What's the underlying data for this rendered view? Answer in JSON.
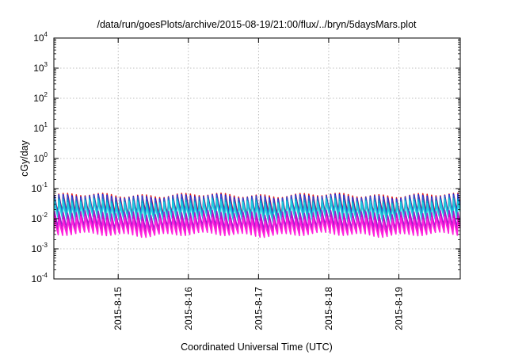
{
  "chart_data": {
    "type": "line",
    "title": "/data/run/goesPlots/archive/2015-08-19/21:00/flux/../bryn/5daysMars.plot",
    "xlabel": "Coordinated Universal Time (UTC)",
    "ylabel": "cGy/day",
    "x_range": [
      "2015-08-14 02:00",
      "2015-08-19 21:00"
    ],
    "x_ticks": [
      "2015-8-15",
      "2015-8-16",
      "2015-8-17",
      "2015-8-18",
      "2015-8-19"
    ],
    "y_scale": "log",
    "ylim": [
      0.0001,
      10000
    ],
    "y_ticks": [
      {
        "base": "10",
        "exp": "-4"
      },
      {
        "base": "10",
        "exp": "-3"
      },
      {
        "base": "10",
        "exp": "-2"
      },
      {
        "base": "10",
        "exp": "-1"
      },
      {
        "base": "10",
        "exp": "0"
      },
      {
        "base": "10",
        "exp": "1"
      },
      {
        "base": "10",
        "exp": "2"
      },
      {
        "base": "10",
        "exp": "3"
      },
      {
        "base": "10",
        "exp": "4"
      }
    ],
    "grid": true,
    "cycle_hours": 1.5,
    "series": [
      {
        "color": "#e0201a",
        "peak": 0.06,
        "trough": 0.015
      },
      {
        "color": "#2222dd",
        "peak": 0.055,
        "trough": 0.013
      },
      {
        "color": "#3355cc",
        "peak": 0.05,
        "trough": 0.012
      },
      {
        "color": "#00b0c8",
        "peak": 0.04,
        "trough": 0.01
      },
      {
        "color": "#22ccdd",
        "peak": 0.035,
        "trough": 0.009
      },
      {
        "color": "#9922cc",
        "peak": 0.016,
        "trough": 0.005
      },
      {
        "color": "#dd00cc",
        "peak": 0.012,
        "trough": 0.0035
      },
      {
        "color": "#ff22dd",
        "peak": 0.01,
        "trough": 0.003
      }
    ]
  }
}
